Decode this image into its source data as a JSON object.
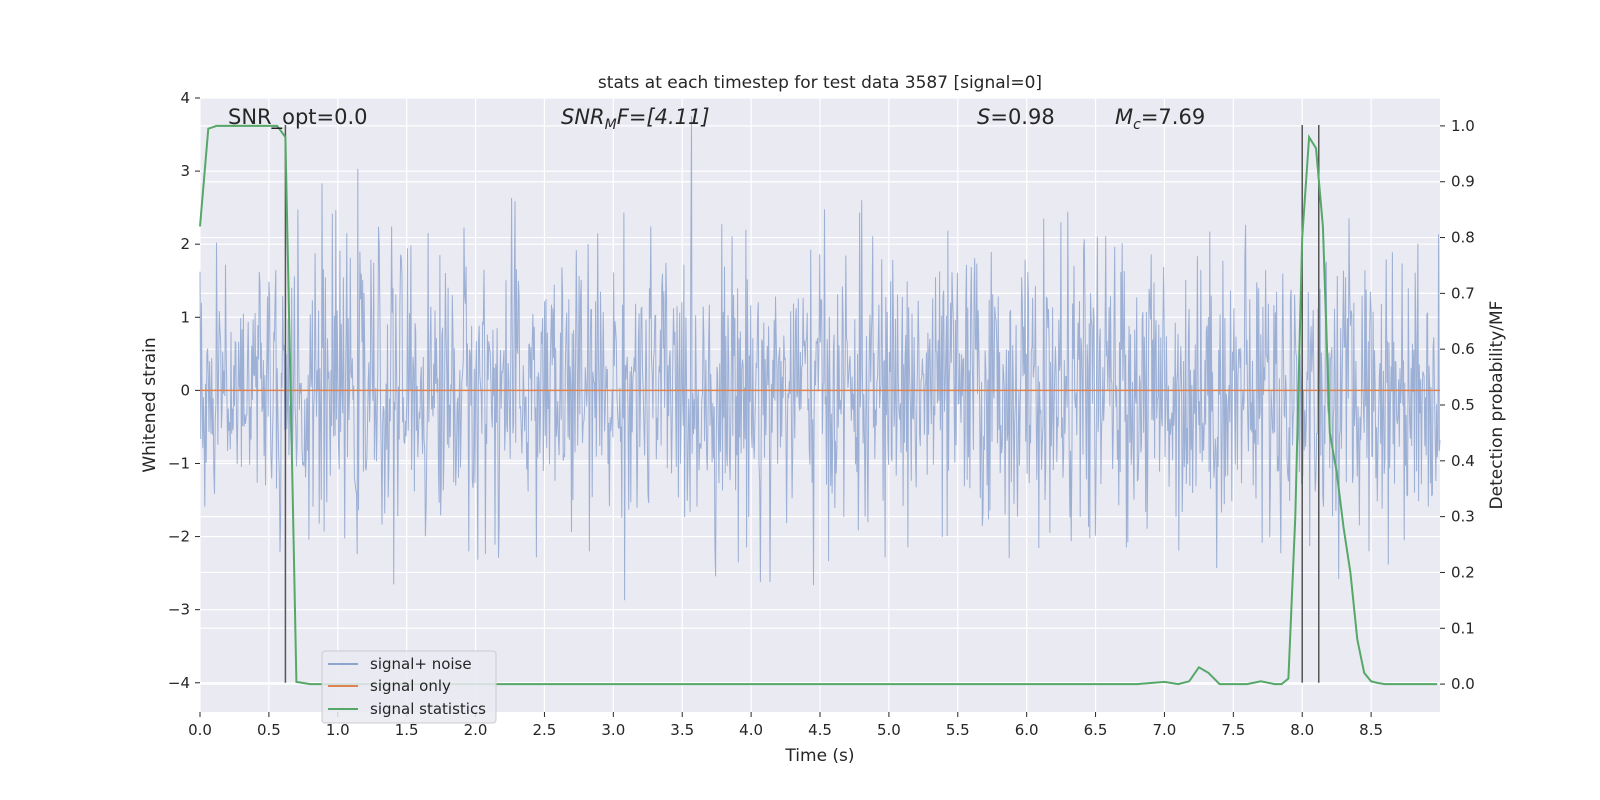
{
  "chart_data": {
    "type": "line",
    "title": "stats at each timestep for test data 3587 [signal=0]",
    "xlabel": "Time (s)",
    "ylabel": "Whitened strain",
    "y2label": "Detection probability/MF",
    "xlim": [
      0.0,
      9.0
    ],
    "ylim": [
      -4.4,
      4.0
    ],
    "y2lim": [
      -0.05,
      1.05
    ],
    "x_ticks": [
      0.0,
      0.5,
      1.0,
      1.5,
      2.0,
      2.5,
      3.0,
      3.5,
      4.0,
      4.5,
      5.0,
      5.5,
      6.0,
      6.5,
      7.0,
      7.5,
      8.0,
      8.5
    ],
    "x_tick_labels": [
      "0.0",
      "0.5",
      "1.0",
      "1.5",
      "2.0",
      "2.5",
      "3.0",
      "3.5",
      "4.0",
      "4.5",
      "5.0",
      "5.5",
      "6.0",
      "6.5",
      "7.0",
      "7.5",
      "8.0",
      "8.5"
    ],
    "y_ticks": [
      -4,
      -3,
      -2,
      -1,
      0,
      1,
      2,
      3,
      4
    ],
    "y_tick_labels": [
      "−4",
      "−3",
      "−2",
      "−1",
      "0",
      "1",
      "2",
      "3",
      "4"
    ],
    "y2_ticks": [
      0.0,
      0.1,
      0.2,
      0.3,
      0.4,
      0.5,
      0.6,
      0.7,
      0.8,
      0.9,
      1.0
    ],
    "y2_tick_labels": [
      "0.0",
      "0.1",
      "0.2",
      "0.3",
      "0.4",
      "0.5",
      "0.6",
      "0.7",
      "0.8",
      "0.9",
      "1.0"
    ],
    "grid": true,
    "legend_position": "lower-left",
    "annotations": {
      "snr_opt": "SNR_opt=0.0",
      "snr_mf_label": "SNR",
      "snr_mf_sub": "M",
      "snr_mf_tail": "F=[4.11]",
      "s_label": "S",
      "s_value": "=0.98",
      "mc_label": "M",
      "mc_sub": "c",
      "mc_value": "=7.69"
    },
    "vertical_lines_x": [
      0.62,
      8.0,
      8.12
    ],
    "series": [
      {
        "name": "signal+ noise",
        "color": "#8ea4cf",
        "axis": "left",
        "noise_sigma": 0.95,
        "samples": 1800,
        "x_range": [
          0.0,
          9.0
        ]
      },
      {
        "name": "signal only",
        "color": "#dd8452",
        "axis": "left",
        "x": [
          0.0,
          9.0
        ],
        "y": [
          0.0,
          0.0
        ]
      },
      {
        "name": "signal statistics",
        "color": "#55a868",
        "axis": "right",
        "x": [
          0.0,
          0.06,
          0.12,
          0.2,
          0.3,
          0.4,
          0.5,
          0.56,
          0.62,
          0.66,
          0.7,
          0.8,
          1.0,
          2.0,
          3.0,
          4.0,
          5.0,
          6.0,
          6.8,
          6.9,
          7.0,
          7.1,
          7.18,
          7.25,
          7.32,
          7.4,
          7.5,
          7.6,
          7.7,
          7.8,
          7.85,
          7.9,
          7.95,
          8.0,
          8.05,
          8.1,
          8.15,
          8.2,
          8.25,
          8.3,
          8.35,
          8.4,
          8.45,
          8.5,
          8.55,
          8.6,
          8.7,
          8.8,
          8.98
        ],
        "y": [
          0.82,
          0.995,
          1.0,
          1.0,
          1.0,
          1.0,
          1.0,
          1.0,
          0.98,
          0.5,
          0.004,
          0.0,
          0.0,
          0.0,
          0.0,
          0.0,
          0.0,
          0.0,
          0.0,
          0.002,
          0.004,
          0.0,
          0.005,
          0.03,
          0.02,
          0.0,
          0.0,
          0.0,
          0.005,
          0.0,
          0.0,
          0.01,
          0.3,
          0.8,
          0.98,
          0.96,
          0.82,
          0.45,
          0.38,
          0.28,
          0.2,
          0.08,
          0.02,
          0.005,
          0.002,
          0.0,
          0.0,
          0.0,
          0.0
        ]
      }
    ]
  }
}
